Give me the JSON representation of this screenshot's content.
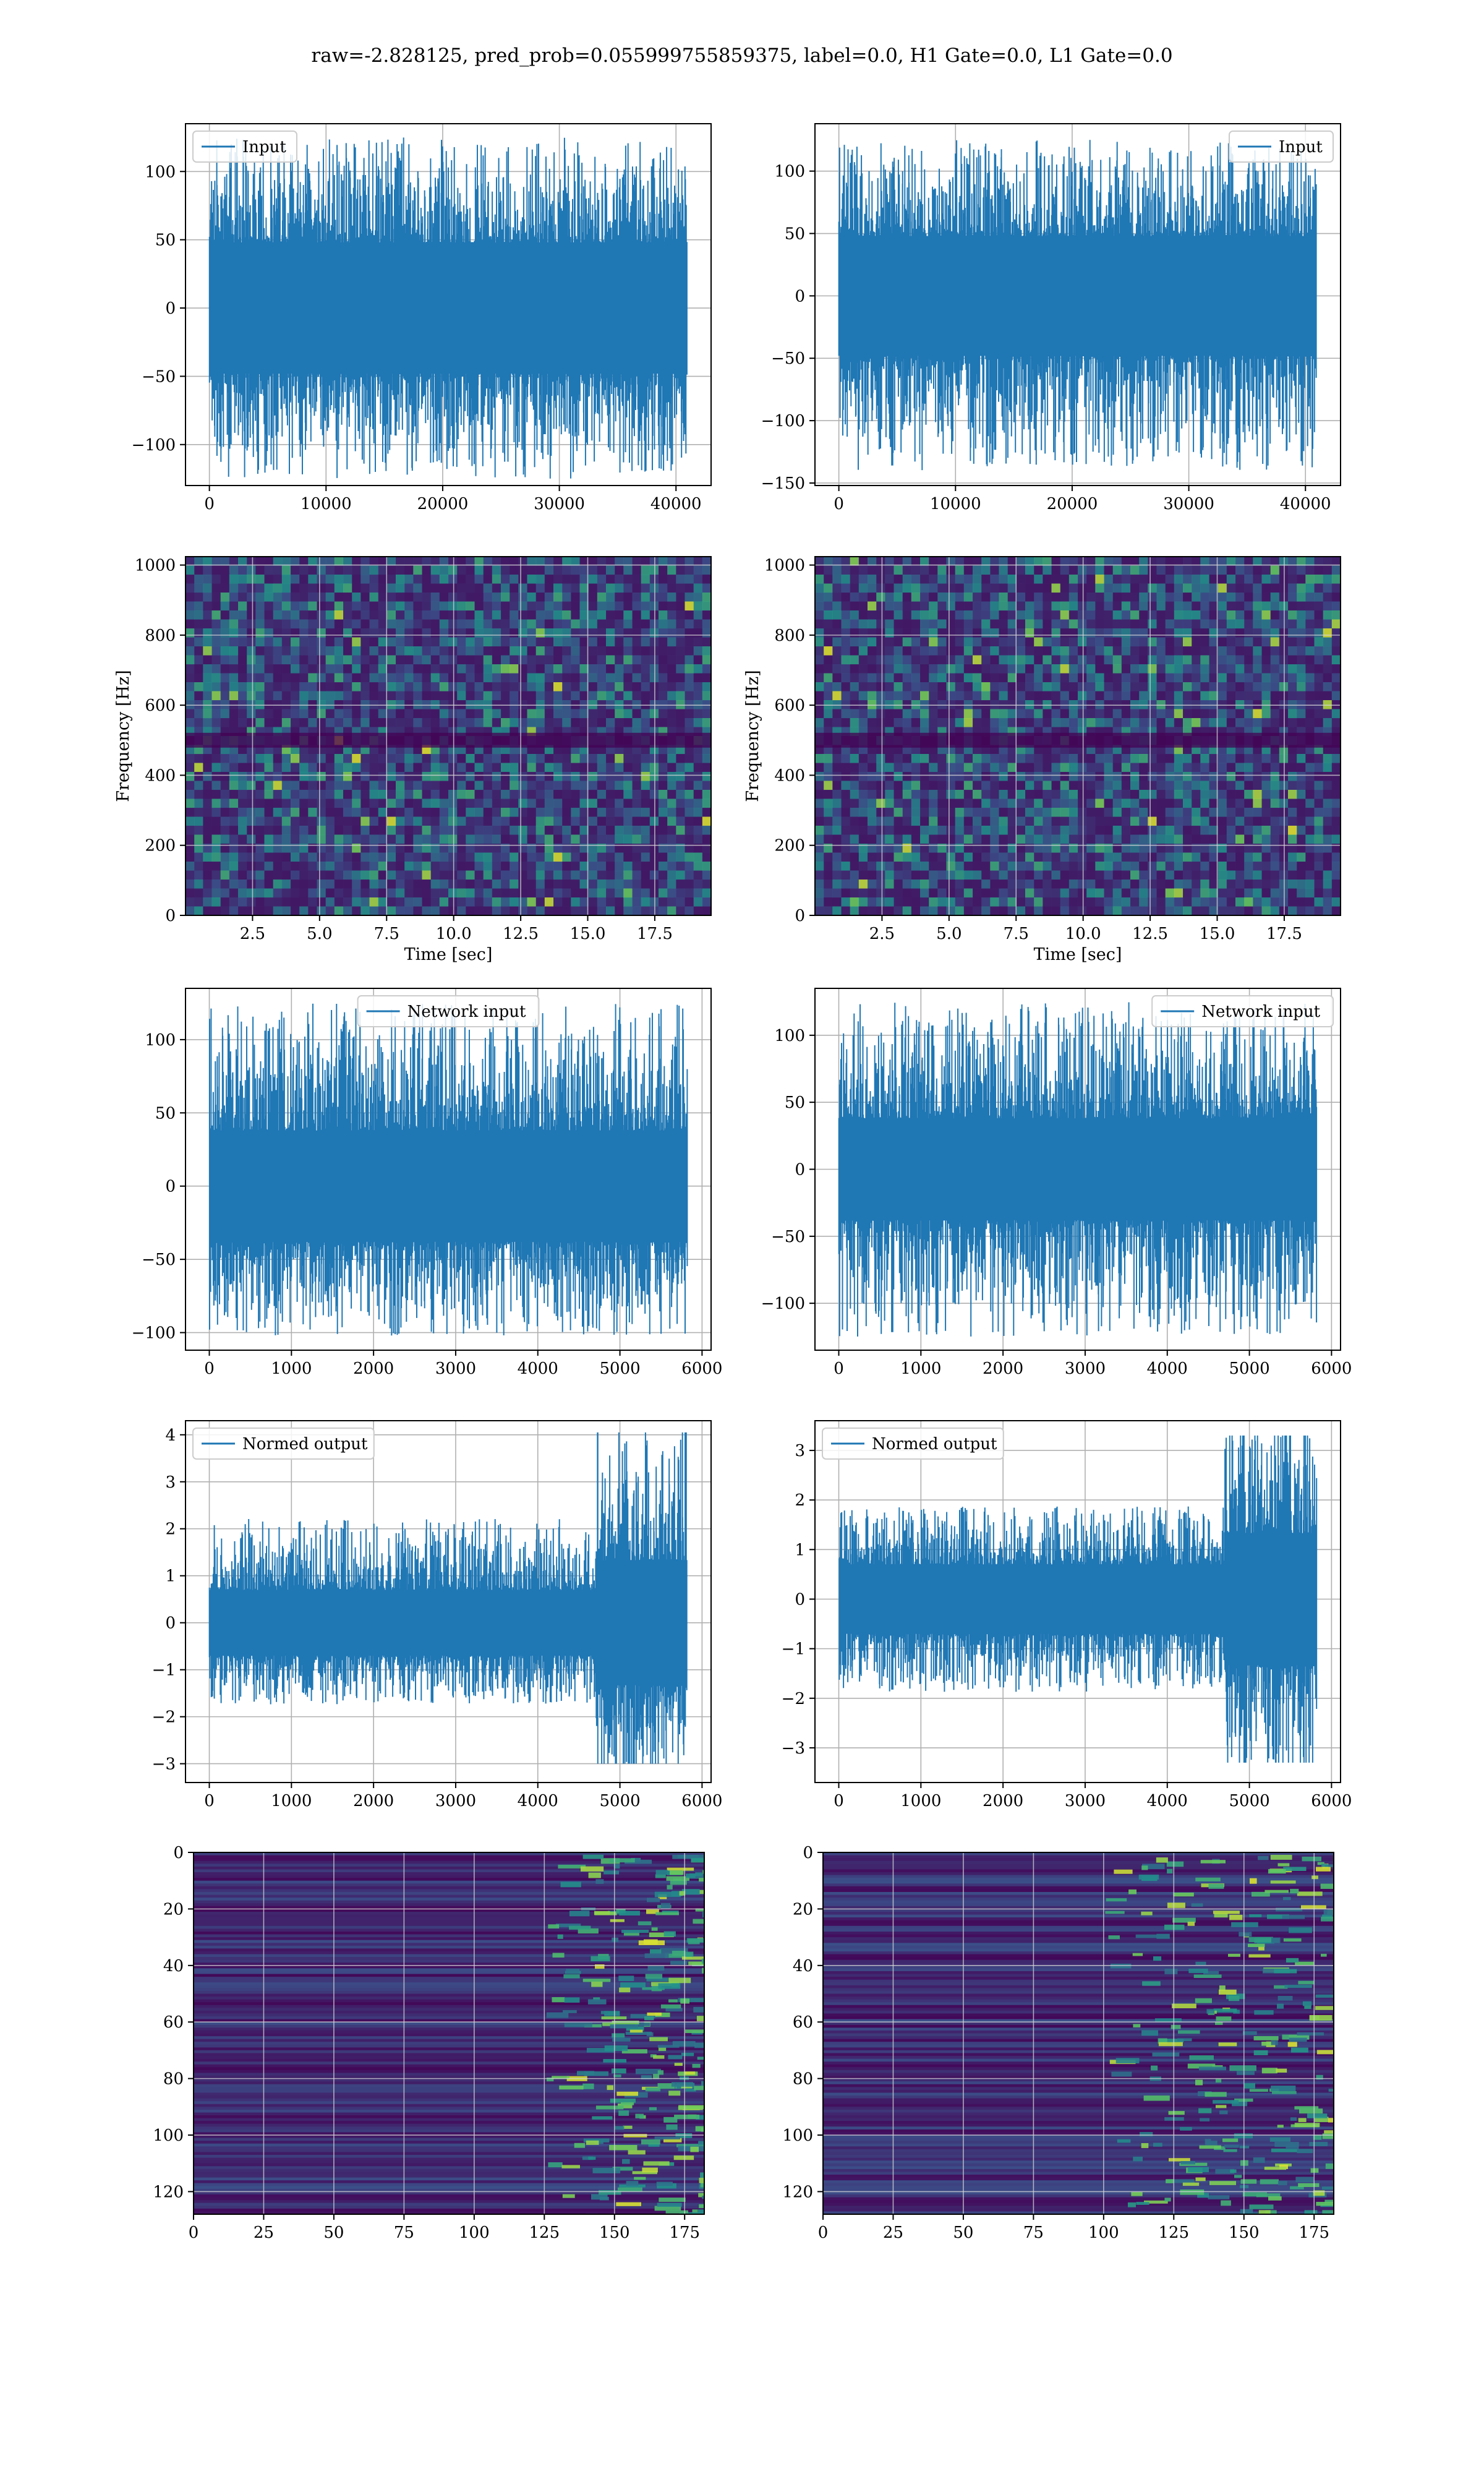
{
  "figure": {
    "title": "raw=-2.828125, pred_prob=0.055999755859375, label=0.0, H1 Gate=0.0, L1 Gate=0.0"
  },
  "colors": {
    "line": "#1f77b4",
    "viridis_dark": "#440154",
    "viridis_mid": "#21918c",
    "viridis_bright": "#fde725"
  },
  "chart_data": [
    {
      "id": "h1-input",
      "type": "line",
      "legend": "Input",
      "legend_loc": "upper left",
      "xlabel": "",
      "ylabel": "",
      "grid": true,
      "xlim": [
        -2048,
        43008
      ],
      "ylim": [
        -130,
        135
      ],
      "xticks": [
        0,
        10000,
        20000,
        30000,
        40000
      ],
      "yticks": [
        -100,
        -50,
        0,
        50,
        100
      ],
      "signal": {
        "n": 40960,
        "core": [
          -48,
          48
        ],
        "peaks": [
          -125,
          125
        ]
      }
    },
    {
      "id": "l1-input",
      "type": "line",
      "legend": "Input",
      "legend_loc": "upper right",
      "xlabel": "",
      "ylabel": "",
      "grid": true,
      "xlim": [
        -2048,
        43008
      ],
      "ylim": [
        -152,
        138
      ],
      "xticks": [
        0,
        10000,
        20000,
        30000,
        40000
      ],
      "yticks": [
        -150,
        -100,
        -50,
        0,
        50,
        100
      ],
      "signal": {
        "n": 40960,
        "core": [
          -48,
          48
        ],
        "peaks": [
          -140,
          125
        ]
      }
    },
    {
      "id": "h1-spectrogram",
      "type": "heatmap",
      "grid": true,
      "xlabel": "Time [sec]",
      "ylabel": "Frequency [Hz]",
      "xlim": [
        0,
        19.6
      ],
      "ylim": [
        0,
        1024
      ],
      "xticks": [
        2.5,
        5.0,
        7.5,
        10.0,
        12.5,
        15.0,
        17.5
      ],
      "yticks": [
        0,
        200,
        400,
        600,
        800,
        1000
      ],
      "colormap": "viridis",
      "dark_band_hz": 500
    },
    {
      "id": "l1-spectrogram",
      "type": "heatmap",
      "grid": true,
      "xlabel": "Time [sec]",
      "ylabel": "Frequency [Hz]",
      "xlim": [
        0,
        19.6
      ],
      "ylim": [
        0,
        1024
      ],
      "xticks": [
        2.5,
        5.0,
        7.5,
        10.0,
        12.5,
        15.0,
        17.5
      ],
      "yticks": [
        0,
        200,
        400,
        600,
        800,
        1000
      ],
      "colormap": "viridis",
      "dark_band_hz": 500
    },
    {
      "id": "h1-network-input",
      "type": "line",
      "legend": "Network input",
      "legend_loc": "upper center",
      "xlabel": "",
      "ylabel": "",
      "grid": true,
      "xlim": [
        -290,
        6110
      ],
      "ylim": [
        -112,
        135
      ],
      "xticks": [
        0,
        1000,
        2000,
        3000,
        4000,
        5000,
        6000
      ],
      "yticks": [
        -100,
        -50,
        0,
        50,
        100
      ],
      "signal": {
        "n": 5820,
        "core": [
          -38,
          38
        ],
        "peaks": [
          -102,
          125
        ]
      }
    },
    {
      "id": "l1-network-input",
      "type": "line",
      "legend": "Network input",
      "legend_loc": "upper right",
      "xlabel": "",
      "ylabel": "",
      "grid": true,
      "xlim": [
        -290,
        6110
      ],
      "ylim": [
        -135,
        135
      ],
      "xticks": [
        0,
        1000,
        2000,
        3000,
        4000,
        5000,
        6000
      ],
      "yticks": [
        -100,
        -50,
        0,
        50,
        100
      ],
      "signal": {
        "n": 5820,
        "core": [
          -38,
          38
        ],
        "peaks": [
          -125,
          125
        ]
      }
    },
    {
      "id": "h1-normed-output",
      "type": "line",
      "legend": "Normed output",
      "legend_loc": "upper left",
      "xlabel": "",
      "ylabel": "",
      "grid": true,
      "xlim": [
        -290,
        6110
      ],
      "ylim": [
        -3.4,
        4.3
      ],
      "xticks": [
        0,
        1000,
        2000,
        3000,
        4000,
        5000,
        6000
      ],
      "yticks": [
        -3,
        -2,
        -1,
        0,
        1,
        2,
        3,
        4
      ],
      "signal": {
        "n": 5820,
        "core": [
          -0.7,
          0.7
        ],
        "peaks": [
          -3.0,
          4.05
        ],
        "burst_start": 4700
      }
    },
    {
      "id": "l1-normed-output",
      "type": "line",
      "legend": "Normed output",
      "legend_loc": "upper left",
      "xlabel": "",
      "ylabel": "",
      "grid": true,
      "xlim": [
        -290,
        6110
      ],
      "ylim": [
        -3.7,
        3.6
      ],
      "xticks": [
        0,
        1000,
        2000,
        3000,
        4000,
        5000,
        6000
      ],
      "yticks": [
        -3,
        -2,
        -1,
        0,
        1,
        2,
        3
      ],
      "signal": {
        "n": 5820,
        "core": [
          -0.7,
          0.7
        ],
        "peaks": [
          -3.3,
          3.3
        ],
        "burst_start": 4700
      }
    },
    {
      "id": "h1-feature-map",
      "type": "heatmap",
      "grid": true,
      "xlabel": "",
      "ylabel": "",
      "xlim": [
        0,
        182
      ],
      "ylim": [
        128,
        0
      ],
      "xticks": [
        0,
        25,
        50,
        75,
        100,
        125,
        150,
        175
      ],
      "yticks": [
        0,
        20,
        40,
        60,
        80,
        100,
        120
      ],
      "colormap": "viridis",
      "activation_start": 125
    },
    {
      "id": "l1-feature-map",
      "type": "heatmap",
      "grid": true,
      "xlabel": "",
      "ylabel": "",
      "xlim": [
        0,
        182
      ],
      "ylim": [
        128,
        0
      ],
      "xticks": [
        0,
        25,
        50,
        75,
        100,
        125,
        150,
        175
      ],
      "yticks": [
        0,
        20,
        40,
        60,
        80,
        100,
        120
      ],
      "colormap": "viridis",
      "activation_start": 100
    }
  ]
}
